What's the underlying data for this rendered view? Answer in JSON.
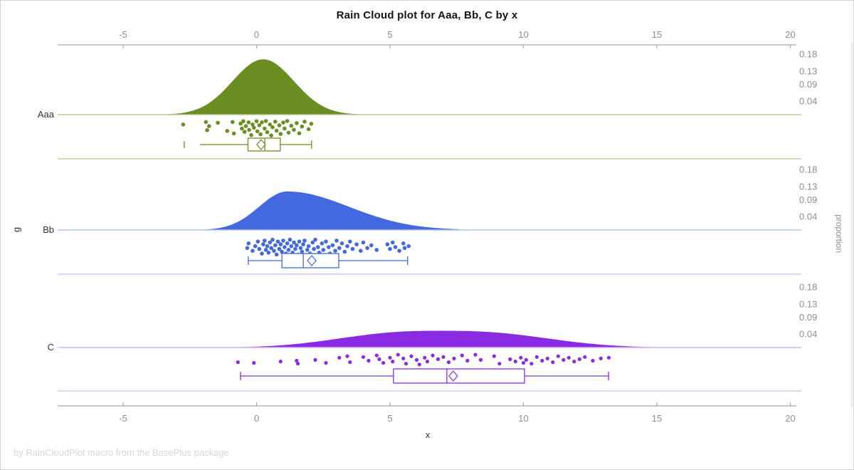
{
  "title": "Rain Cloud plot for Aaa, Bb, C by x",
  "footer": "by RainCloudPlot macro from the BasePlus package",
  "axes": {
    "x_label": "x",
    "y_label": "g",
    "right_label": "proportion",
    "x_tick_labels": [
      "-5",
      "0",
      "5",
      "10",
      "15",
      "20"
    ],
    "x_tick_values": [
      -5,
      0,
      5,
      10,
      15,
      20
    ],
    "proportion_tick_labels": [
      "0.18",
      "0.13",
      "0.09",
      "0.04"
    ],
    "proportion_tick_values": [
      0.18,
      0.13,
      0.09,
      0.04
    ],
    "x_range": [
      -7.5,
      20.3
    ]
  },
  "chart_data": {
    "type": "raincloud",
    "xlabel": "x",
    "ylabel": "g",
    "right_axis_label": "proportion",
    "x_ticks": [
      -5,
      0,
      5,
      10,
      15,
      20
    ],
    "proportion_ticks": [
      0.18,
      0.13,
      0.09,
      0.04
    ],
    "groups": [
      {
        "label": "Aaa",
        "color": "#6b8e23",
        "pale_color": "#bcc893",
        "density": {
          "center": 0.25,
          "sigma_left": 1.15,
          "sigma_right": 1.15,
          "power": 2.0,
          "peak_proportion": 0.165,
          "range": [
            -3.9,
            3.8
          ]
        },
        "box": {
          "outlier_low": -2.71,
          "whisker_low": -2.12,
          "q1": -0.32,
          "median": 0.31,
          "q3": 0.89,
          "whisker_high": 2.06,
          "mean": 0.17,
          "cap_low": false,
          "cap_high": true
        },
        "points": [
          [
            -2.75,
            0.25
          ],
          [
            -1.9,
            0.1
          ],
          [
            -1.85,
            0.6
          ],
          [
            -1.78,
            0.35
          ],
          [
            -1.45,
            0.15
          ],
          [
            -1.1,
            0.65
          ],
          [
            -0.9,
            0.1
          ],
          [
            -0.85,
            0.8
          ],
          [
            -0.6,
            0.2
          ],
          [
            -0.55,
            0.5
          ],
          [
            -0.5,
            0.05
          ],
          [
            -0.45,
            0.7
          ],
          [
            -0.4,
            0.35
          ],
          [
            -0.3,
            0.12
          ],
          [
            -0.28,
            0.58
          ],
          [
            -0.2,
            0.9
          ],
          [
            -0.15,
            0.25
          ],
          [
            -0.1,
            0.45
          ],
          [
            0.0,
            0.05
          ],
          [
            0.03,
            0.67
          ],
          [
            0.1,
            0.3
          ],
          [
            0.15,
            0.85
          ],
          [
            0.2,
            0.12
          ],
          [
            0.3,
            0.5
          ],
          [
            0.35,
            0.04
          ],
          [
            0.4,
            0.72
          ],
          [
            0.5,
            0.25
          ],
          [
            0.55,
            0.92
          ],
          [
            0.6,
            0.42
          ],
          [
            0.7,
            0.08
          ],
          [
            0.75,
            0.63
          ],
          [
            0.85,
            0.3
          ],
          [
            0.9,
            0.83
          ],
          [
            1.0,
            0.13
          ],
          [
            1.05,
            0.5
          ],
          [
            1.15,
            0.04
          ],
          [
            1.2,
            0.75
          ],
          [
            1.3,
            0.33
          ],
          [
            1.4,
            0.58
          ],
          [
            1.5,
            0.17
          ],
          [
            1.6,
            0.79
          ],
          [
            1.7,
            0.38
          ],
          [
            1.8,
            0.08
          ],
          [
            1.95,
            0.54
          ],
          [
            2.05,
            0.21
          ]
        ]
      },
      {
        "label": "Bb",
        "color": "#4468e0",
        "pale_color": "#b4c6f0",
        "density": {
          "center": 1.15,
          "sigma_left": 1.05,
          "sigma_right": 2.3,
          "power": 2.0,
          "peak_proportion": 0.115,
          "range": [
            -2.3,
            7.6
          ]
        },
        "box": {
          "outlier_low": null,
          "whisker_low": -0.31,
          "q1": 0.95,
          "median": 1.75,
          "q3": 3.08,
          "whisker_high": 5.66,
          "mean": 2.07,
          "cap_low": true,
          "cap_high": true
        },
        "points": [
          [
            -0.35,
            0.55
          ],
          [
            -0.3,
            0.3
          ],
          [
            -0.15,
            0.7
          ],
          [
            -0.05,
            0.45
          ],
          [
            0.05,
            0.2
          ],
          [
            0.1,
            0.6
          ],
          [
            0.2,
            0.85
          ],
          [
            0.25,
            0.35
          ],
          [
            0.3,
            0.15
          ],
          [
            0.35,
            0.65
          ],
          [
            0.4,
            0.45
          ],
          [
            0.45,
            0.8
          ],
          [
            0.5,
            0.25
          ],
          [
            0.55,
            0.55
          ],
          [
            0.6,
            0.1
          ],
          [
            0.65,
            0.7
          ],
          [
            0.7,
            0.4
          ],
          [
            0.75,
            0.9
          ],
          [
            0.8,
            0.2
          ],
          [
            0.85,
            0.6
          ],
          [
            0.9,
            0.35
          ],
          [
            0.95,
            0.75
          ],
          [
            1.0,
            0.15
          ],
          [
            1.05,
            0.5
          ],
          [
            1.1,
            0.85
          ],
          [
            1.15,
            0.3
          ],
          [
            1.2,
            0.65
          ],
          [
            1.25,
            0.1
          ],
          [
            1.3,
            0.45
          ],
          [
            1.35,
            0.8
          ],
          [
            1.4,
            0.25
          ],
          [
            1.45,
            0.6
          ],
          [
            1.5,
            0.4
          ],
          [
            1.55,
            0.9
          ],
          [
            1.6,
            0.2
          ],
          [
            1.65,
            0.55
          ],
          [
            1.7,
            0.75
          ],
          [
            1.75,
            0.35
          ],
          [
            1.8,
            0.15
          ],
          [
            1.9,
            0.65
          ],
          [
            1.95,
            0.45
          ],
          [
            2.0,
            0.85
          ],
          [
            2.1,
            0.25
          ],
          [
            2.15,
            0.6
          ],
          [
            2.2,
            0.1
          ],
          [
            2.3,
            0.5
          ],
          [
            2.35,
            0.8
          ],
          [
            2.45,
            0.3
          ],
          [
            2.5,
            0.65
          ],
          [
            2.6,
            0.2
          ],
          [
            2.7,
            0.5
          ],
          [
            2.75,
            0.85
          ],
          [
            2.85,
            0.4
          ],
          [
            2.95,
            0.7
          ],
          [
            3.0,
            0.15
          ],
          [
            3.1,
            0.55
          ],
          [
            3.2,
            0.3
          ],
          [
            3.3,
            0.75
          ],
          [
            3.4,
            0.45
          ],
          [
            3.5,
            0.2
          ],
          [
            3.6,
            0.6
          ],
          [
            3.75,
            0.35
          ],
          [
            3.9,
            0.7
          ],
          [
            4.0,
            0.25
          ],
          [
            4.15,
            0.55
          ],
          [
            4.3,
            0.4
          ],
          [
            4.5,
            0.65
          ],
          [
            4.9,
            0.35
          ],
          [
            5.0,
            0.6
          ],
          [
            5.1,
            0.25
          ],
          [
            5.2,
            0.5
          ],
          [
            5.35,
            0.7
          ],
          [
            5.5,
            0.3
          ],
          [
            5.55,
            0.55
          ],
          [
            5.7,
            0.45
          ]
        ]
      },
      {
        "label": "C",
        "color": "#8a2be2",
        "pale_color": "#d5b9ef",
        "density": {
          "center": 6.9,
          "sigma_left": 3.5,
          "sigma_right": 3.7,
          "power": 2.6,
          "peak_proportion": 0.05,
          "range": [
            -1.1,
            16.8
          ]
        },
        "box": {
          "outlier_low": null,
          "whisker_low": -0.6,
          "q1": 5.13,
          "median": 7.13,
          "q3": 10.04,
          "whisker_high": 13.19,
          "mean": 7.37,
          "cap_low": true,
          "cap_high": true
        },
        "points": [
          [
            -0.7,
            0.6
          ],
          [
            -0.1,
            0.65
          ],
          [
            0.9,
            0.55
          ],
          [
            1.5,
            0.5
          ],
          [
            1.55,
            0.7
          ],
          [
            2.2,
            0.45
          ],
          [
            2.6,
            0.65
          ],
          [
            3.1,
            0.3
          ],
          [
            3.4,
            0.2
          ],
          [
            3.5,
            0.6
          ],
          [
            4.0,
            0.25
          ],
          [
            4.2,
            0.5
          ],
          [
            4.5,
            0.15
          ],
          [
            4.6,
            0.4
          ],
          [
            4.75,
            0.65
          ],
          [
            5.0,
            0.3
          ],
          [
            5.1,
            0.55
          ],
          [
            5.3,
            0.1
          ],
          [
            5.5,
            0.35
          ],
          [
            5.6,
            0.7
          ],
          [
            5.8,
            0.2
          ],
          [
            6.0,
            0.45
          ],
          [
            6.1,
            0.75
          ],
          [
            6.3,
            0.3
          ],
          [
            6.4,
            0.55
          ],
          [
            6.6,
            0.15
          ],
          [
            6.8,
            0.4
          ],
          [
            7.0,
            0.25
          ],
          [
            7.2,
            0.6
          ],
          [
            7.4,
            0.35
          ],
          [
            7.7,
            0.15
          ],
          [
            7.9,
            0.5
          ],
          [
            8.2,
            0.1
          ],
          [
            8.4,
            0.45
          ],
          [
            8.9,
            0.2
          ],
          [
            9.1,
            0.7
          ],
          [
            9.5,
            0.4
          ],
          [
            9.7,
            0.55
          ],
          [
            9.9,
            0.3
          ],
          [
            10.0,
            0.65
          ],
          [
            10.1,
            0.45
          ],
          [
            10.3,
            0.7
          ],
          [
            10.5,
            0.25
          ],
          [
            10.7,
            0.5
          ],
          [
            10.9,
            0.35
          ],
          [
            11.1,
            0.6
          ],
          [
            11.3,
            0.2
          ],
          [
            11.5,
            0.45
          ],
          [
            11.7,
            0.3
          ],
          [
            11.9,
            0.55
          ],
          [
            12.1,
            0.4
          ],
          [
            12.3,
            0.25
          ],
          [
            12.6,
            0.5
          ],
          [
            12.9,
            0.35
          ],
          [
            13.2,
            0.3
          ]
        ]
      }
    ]
  }
}
